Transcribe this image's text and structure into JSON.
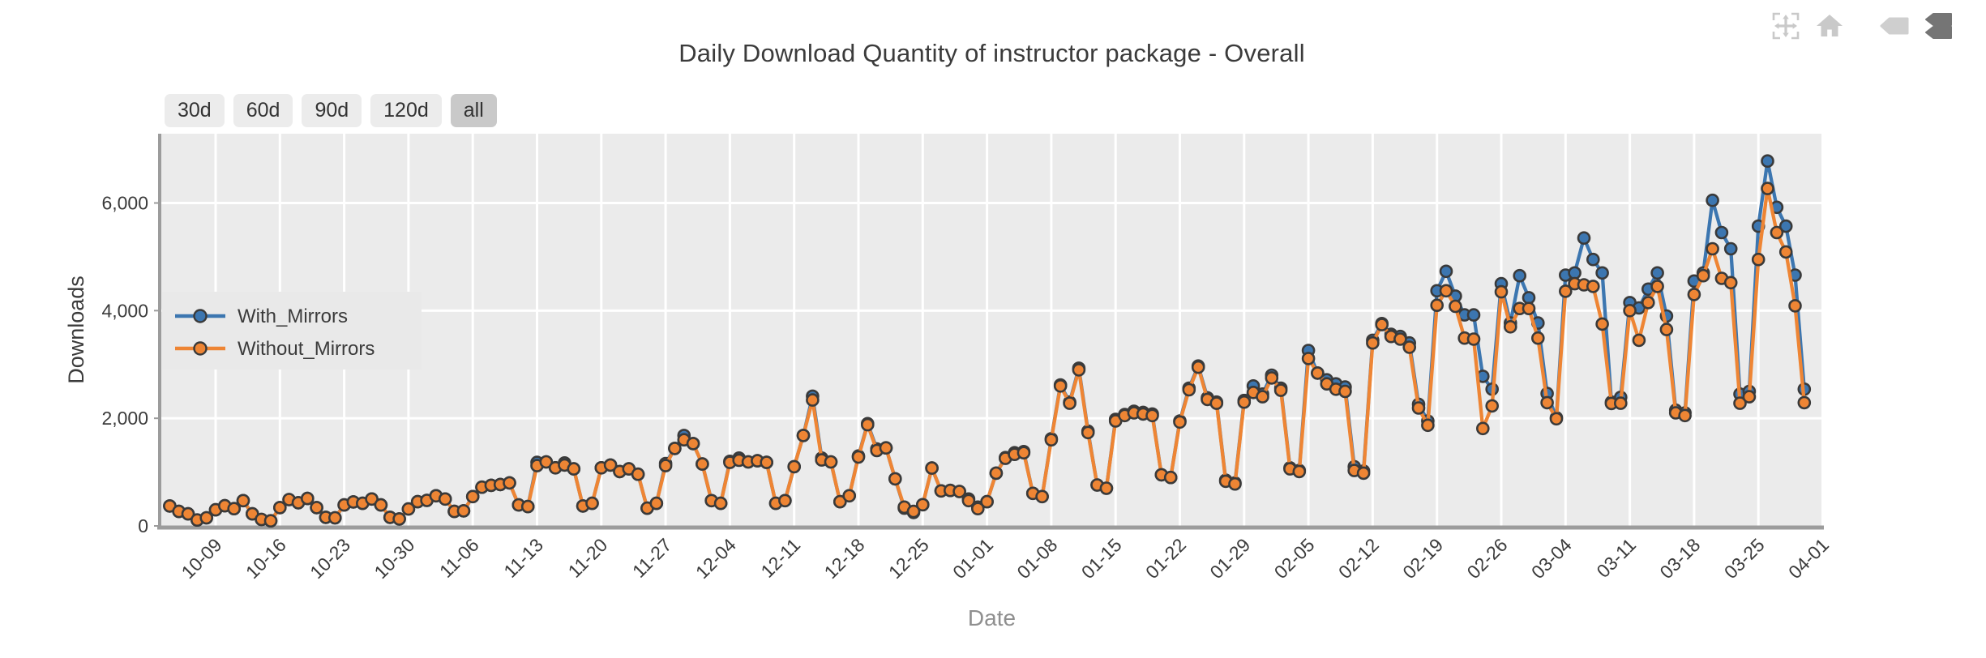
{
  "title": "Daily Download Quantity of instructor package - Overall",
  "toolbar": {
    "icons": [
      "pan-move-icon",
      "home-reset-icon",
      "hover-inactive-icon",
      "hover-active-icon"
    ]
  },
  "range_buttons": [
    {
      "label": "30d",
      "selected": false
    },
    {
      "label": "60d",
      "selected": false
    },
    {
      "label": "90d",
      "selected": false
    },
    {
      "label": "120d",
      "selected": false
    },
    {
      "label": "all",
      "selected": true
    }
  ],
  "colors": {
    "with_mirrors": "#3c76b0",
    "without_mirrors": "#ee8534",
    "plot_background": "#ebebeb",
    "grid": "#ffffff",
    "axis": "#9c9c9c",
    "text": "#3b3b3b",
    "muted_text": "#8f8f8f",
    "legend_bg": "#e9e9e9",
    "marker_outline": "#3a3a3a",
    "button_bg": "#ececec",
    "button_selected_bg": "#c9c9c9",
    "toolbar_icon": "#c9c9c9",
    "toolbar_icon_active": "#757575"
  },
  "chart_data": {
    "type": "line",
    "title": "Daily Download Quantity of instructor package - Overall",
    "xlabel": "Date",
    "ylabel": "Downloads",
    "grid": true,
    "legend_position": "inside-left-middle",
    "ylim": [
      0,
      7300
    ],
    "y_ticks": [
      0,
      2000,
      4000,
      6000
    ],
    "y_tick_labels": [
      "0",
      "2,000",
      "4,000",
      "6,000"
    ],
    "x_tick_labels": [
      "10-09",
      "10-16",
      "10-23",
      "10-30",
      "11-06",
      "11-13",
      "11-20",
      "11-27",
      "12-04",
      "12-11",
      "12-18",
      "12-25",
      "01-01",
      "01-08",
      "01-15",
      "01-22",
      "01-29",
      "02-05",
      "02-12",
      "02-19",
      "02-26",
      "03-04",
      "03-11",
      "03-18",
      "03-25",
      "04-01"
    ],
    "x": [
      "10-04",
      "10-05",
      "10-06",
      "10-07",
      "10-08",
      "10-09",
      "10-10",
      "10-11",
      "10-12",
      "10-13",
      "10-14",
      "10-15",
      "10-16",
      "10-17",
      "10-18",
      "10-19",
      "10-20",
      "10-21",
      "10-22",
      "10-23",
      "10-24",
      "10-25",
      "10-26",
      "10-27",
      "10-28",
      "10-29",
      "10-30",
      "10-31",
      "11-01",
      "11-02",
      "11-03",
      "11-04",
      "11-05",
      "11-06",
      "11-07",
      "11-08",
      "11-09",
      "11-10",
      "11-11",
      "11-12",
      "11-13",
      "11-14",
      "11-15",
      "11-16",
      "11-17",
      "11-18",
      "11-19",
      "11-20",
      "11-21",
      "11-22",
      "11-23",
      "11-24",
      "11-25",
      "11-26",
      "11-27",
      "11-28",
      "11-29",
      "11-30",
      "12-01",
      "12-02",
      "12-03",
      "12-04",
      "12-05",
      "12-06",
      "12-07",
      "12-08",
      "12-09",
      "12-10",
      "12-11",
      "12-12",
      "12-13",
      "12-14",
      "12-15",
      "12-16",
      "12-17",
      "12-18",
      "12-19",
      "12-20",
      "12-21",
      "12-22",
      "12-23",
      "12-24",
      "12-25",
      "12-26",
      "12-27",
      "12-28",
      "12-29",
      "12-30",
      "12-31",
      "01-01",
      "01-02",
      "01-03",
      "01-04",
      "01-05",
      "01-06",
      "01-07",
      "01-08",
      "01-09",
      "01-10",
      "01-11",
      "01-12",
      "01-13",
      "01-14",
      "01-15",
      "01-16",
      "01-17",
      "01-18",
      "01-19",
      "01-20",
      "01-21",
      "01-22",
      "01-23",
      "01-24",
      "01-25",
      "01-26",
      "01-27",
      "01-28",
      "01-29",
      "01-30",
      "01-31",
      "02-01",
      "02-02",
      "02-03",
      "02-04",
      "02-05",
      "02-06",
      "02-07",
      "02-08",
      "02-09",
      "02-10",
      "02-11",
      "02-12",
      "02-13",
      "02-14",
      "02-15",
      "02-16",
      "02-17",
      "02-18",
      "02-19",
      "02-20",
      "02-21",
      "02-22",
      "02-23",
      "02-24",
      "02-25",
      "02-26",
      "02-27",
      "02-28",
      "02-29",
      "03-01",
      "03-02",
      "03-03",
      "03-04",
      "03-05",
      "03-06",
      "03-07",
      "03-08",
      "03-09",
      "03-10",
      "03-11",
      "03-12",
      "03-13",
      "03-14",
      "03-15",
      "03-16",
      "03-17",
      "03-18",
      "03-19",
      "03-20",
      "03-21",
      "03-22",
      "03-23",
      "03-24",
      "03-25",
      "03-26",
      "03-27",
      "03-28",
      "03-29",
      "03-30"
    ],
    "series": [
      {
        "name": "With_Mirrors",
        "color": "#3c76b0",
        "values": [
          370,
          270,
          225,
          110,
          150,
          300,
          375,
          320,
          470,
          225,
          120,
          95,
          340,
          490,
          430,
          510,
          340,
          160,
          150,
          390,
          445,
          420,
          500,
          390,
          160,
          130,
          315,
          450,
          475,
          560,
          500,
          270,
          280,
          545,
          720,
          755,
          770,
          800,
          390,
          360,
          1180,
          1190,
          1080,
          1170,
          1060,
          370,
          420,
          1080,
          1130,
          1010,
          1060,
          960,
          330,
          420,
          1160,
          1440,
          1680,
          1530,
          1150,
          470,
          420,
          1200,
          1260,
          1190,
          1210,
          1180,
          420,
          470,
          1100,
          1680,
          2410,
          1260,
          1190,
          450,
          560,
          1300,
          1900,
          1430,
          1450,
          875,
          330,
          250,
          395,
          1075,
          650,
          660,
          640,
          500,
          350,
          450,
          980,
          1270,
          1360,
          1380,
          605,
          545,
          1620,
          2620,
          2300,
          2930,
          1760,
          760,
          700,
          1980,
          2070,
          2130,
          2110,
          2080,
          950,
          900,
          1950,
          2560,
          2970,
          2380,
          2300,
          850,
          800,
          2330,
          2600,
          2450,
          2800,
          2560,
          1080,
          1030,
          3260,
          2840,
          2715,
          2640,
          2580,
          1100,
          1020,
          3450,
          3760,
          3560,
          3520,
          3400,
          2260,
          1950,
          4370,
          4730,
          4270,
          3920,
          3920,
          2780,
          2540,
          4500,
          3770,
          4650,
          4240,
          3770,
          2460,
          2010,
          4660,
          4700,
          5350,
          4950,
          4700,
          2300,
          2390,
          4150,
          4050,
          4400,
          4700,
          3900,
          2150,
          2100,
          4550,
          4700,
          6050,
          5450,
          5150,
          2450,
          2500,
          5570,
          6780,
          5920,
          5570,
          4660,
          2540
        ]
      },
      {
        "name": "Without_Mirrors",
        "color": "#ee8534",
        "values": [
          370,
          270,
          225,
          110,
          150,
          300,
          375,
          320,
          470,
          225,
          120,
          95,
          340,
          490,
          430,
          510,
          340,
          160,
          150,
          390,
          445,
          420,
          500,
          390,
          160,
          130,
          315,
          450,
          475,
          560,
          500,
          270,
          280,
          545,
          720,
          755,
          770,
          800,
          390,
          360,
          1120,
          1190,
          1080,
          1130,
          1060,
          370,
          420,
          1080,
          1130,
          1010,
          1060,
          960,
          330,
          420,
          1120,
          1440,
          1600,
          1530,
          1150,
          470,
          420,
          1180,
          1220,
          1190,
          1210,
          1180,
          420,
          470,
          1100,
          1680,
          2340,
          1225,
          1190,
          450,
          560,
          1280,
          1880,
          1400,
          1450,
          875,
          350,
          270,
          395,
          1075,
          650,
          660,
          640,
          470,
          320,
          450,
          980,
          1255,
          1330,
          1360,
          605,
          545,
          1600,
          2600,
          2280,
          2900,
          1735,
          760,
          700,
          1950,
          2050,
          2100,
          2080,
          2050,
          950,
          900,
          1930,
          2530,
          2950,
          2350,
          2280,
          830,
          780,
          2300,
          2480,
          2400,
          2750,
          2520,
          1060,
          1010,
          3110,
          2840,
          2640,
          2540,
          2500,
          1030,
          980,
          3400,
          3740,
          3520,
          3470,
          3320,
          2190,
          1870,
          4100,
          4370,
          4080,
          3490,
          3470,
          1810,
          2230,
          4350,
          3700,
          4040,
          4040,
          3490,
          2290,
          1990,
          4360,
          4500,
          4480,
          4450,
          3750,
          2275,
          2280,
          4000,
          3450,
          4150,
          4450,
          3650,
          2100,
          2050,
          4300,
          4650,
          5150,
          4600,
          4520,
          2280,
          2400,
          4950,
          6270,
          5450,
          5090,
          4090,
          2290
        ]
      }
    ]
  }
}
